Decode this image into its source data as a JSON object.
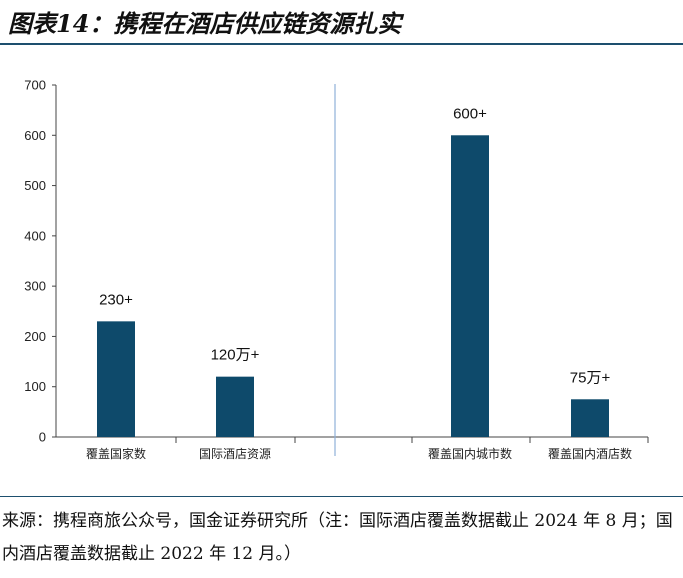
{
  "header": {
    "figure_title": "图表14：携程在酒店供应链资源扎实"
  },
  "chart_data": {
    "type": "bar",
    "categories": [
      "覆盖国家数",
      "国际酒店资源",
      "覆盖国内城市数",
      "覆盖国内酒店数"
    ],
    "values": [
      230,
      120,
      600,
      75
    ],
    "data_labels": [
      "230+",
      "120万+",
      "600+",
      "75万+"
    ],
    "yticks": [
      "0",
      "100",
      "200",
      "300",
      "400",
      "500",
      "600",
      "700"
    ],
    "ylim": [
      0,
      700
    ],
    "title": "",
    "xlabel": "",
    "ylabel": "",
    "grid": false,
    "bar_color": "#0e4a6b",
    "divider_color": "#8fb0d8"
  },
  "footer": {
    "source": "来源：携程商旅公众号，国金证券研究所（注：国际酒店覆盖数据截止 2024 年 8 月；国内酒店覆盖数据截止 2022 年 12 月。）"
  }
}
